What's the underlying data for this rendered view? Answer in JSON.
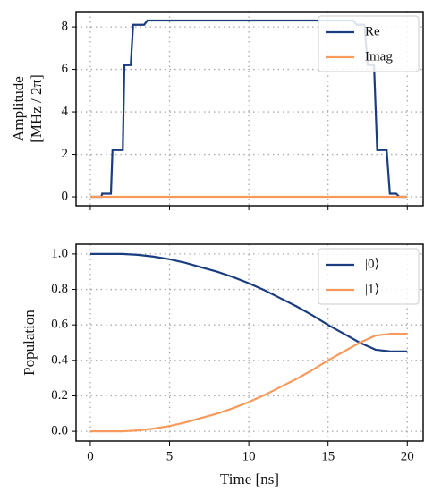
{
  "chart_data": [
    {
      "type": "line",
      "ylabel": [
        "Amplitude",
        "[MHz / 2π]"
      ],
      "x": [
        0,
        0.7,
        0.75,
        1.3,
        1.4,
        2.05,
        2.15,
        2.55,
        2.7,
        3.4,
        3.6,
        16.6,
        16.8,
        17.3,
        17.5,
        17.9,
        18.1,
        18.7,
        18.9,
        19.3,
        19.5,
        20
      ],
      "series": [
        {
          "name": "Re",
          "color": "#1a3d80",
          "values": [
            0,
            0,
            0.15,
            0.15,
            2.2,
            2.2,
            6.2,
            6.2,
            8.1,
            8.1,
            8.3,
            8.3,
            8.1,
            8.1,
            6.2,
            6.2,
            2.2,
            2.2,
            0.15,
            0.15,
            0,
            0
          ]
        },
        {
          "name": "Imag",
          "color": "#f79a5c",
          "values": [
            0,
            0,
            0,
            0,
            0,
            0,
            0,
            0,
            0,
            0,
            0,
            0,
            0,
            0,
            0,
            0,
            0,
            0,
            0,
            0,
            0,
            0
          ]
        }
      ],
      "xlim": [
        -0.9,
        21.0
      ],
      "xticks": [
        0,
        5,
        10,
        15,
        20
      ],
      "show_xtick_labels": false,
      "ylim": [
        -0.42,
        8.72
      ],
      "yticks": [
        0,
        2,
        4,
        6,
        8
      ],
      "grid": true,
      "legend": "upper-right"
    },
    {
      "type": "line",
      "xlabel": "Time [ns]",
      "ylabel": [
        "Population"
      ],
      "x": [
        0,
        1,
        2,
        3,
        4,
        5,
        6,
        7,
        8,
        9,
        10,
        11,
        12,
        13,
        14,
        15,
        16,
        17,
        18,
        19,
        20
      ],
      "series": [
        {
          "name": "|0⟩",
          "color": "#1a3d80",
          "values": [
            1,
            1,
            1,
            0.995,
            0.985,
            0.97,
            0.95,
            0.925,
            0.9,
            0.87,
            0.835,
            0.795,
            0.75,
            0.705,
            0.655,
            0.6,
            0.55,
            0.5,
            0.46,
            0.45,
            0.45
          ]
        },
        {
          "name": "|1⟩",
          "color": "#f79a5c",
          "values": [
            0,
            0,
            0,
            0.005,
            0.015,
            0.03,
            0.05,
            0.075,
            0.1,
            0.13,
            0.165,
            0.205,
            0.25,
            0.295,
            0.345,
            0.4,
            0.45,
            0.5,
            0.54,
            0.55,
            0.55
          ]
        }
      ],
      "xlim": [
        -0.9,
        21.0
      ],
      "xticks": [
        0,
        5,
        10,
        15,
        20
      ],
      "show_xtick_labels": true,
      "ylim": [
        -0.055,
        1.055
      ],
      "yticks": [
        {
          "value": 0,
          "label": "0.0"
        },
        0.2,
        0.4,
        0.6,
        0.8,
        {
          "value": 1,
          "label": "1.0"
        }
      ],
      "grid": true,
      "legend": "upper-right"
    }
  ]
}
